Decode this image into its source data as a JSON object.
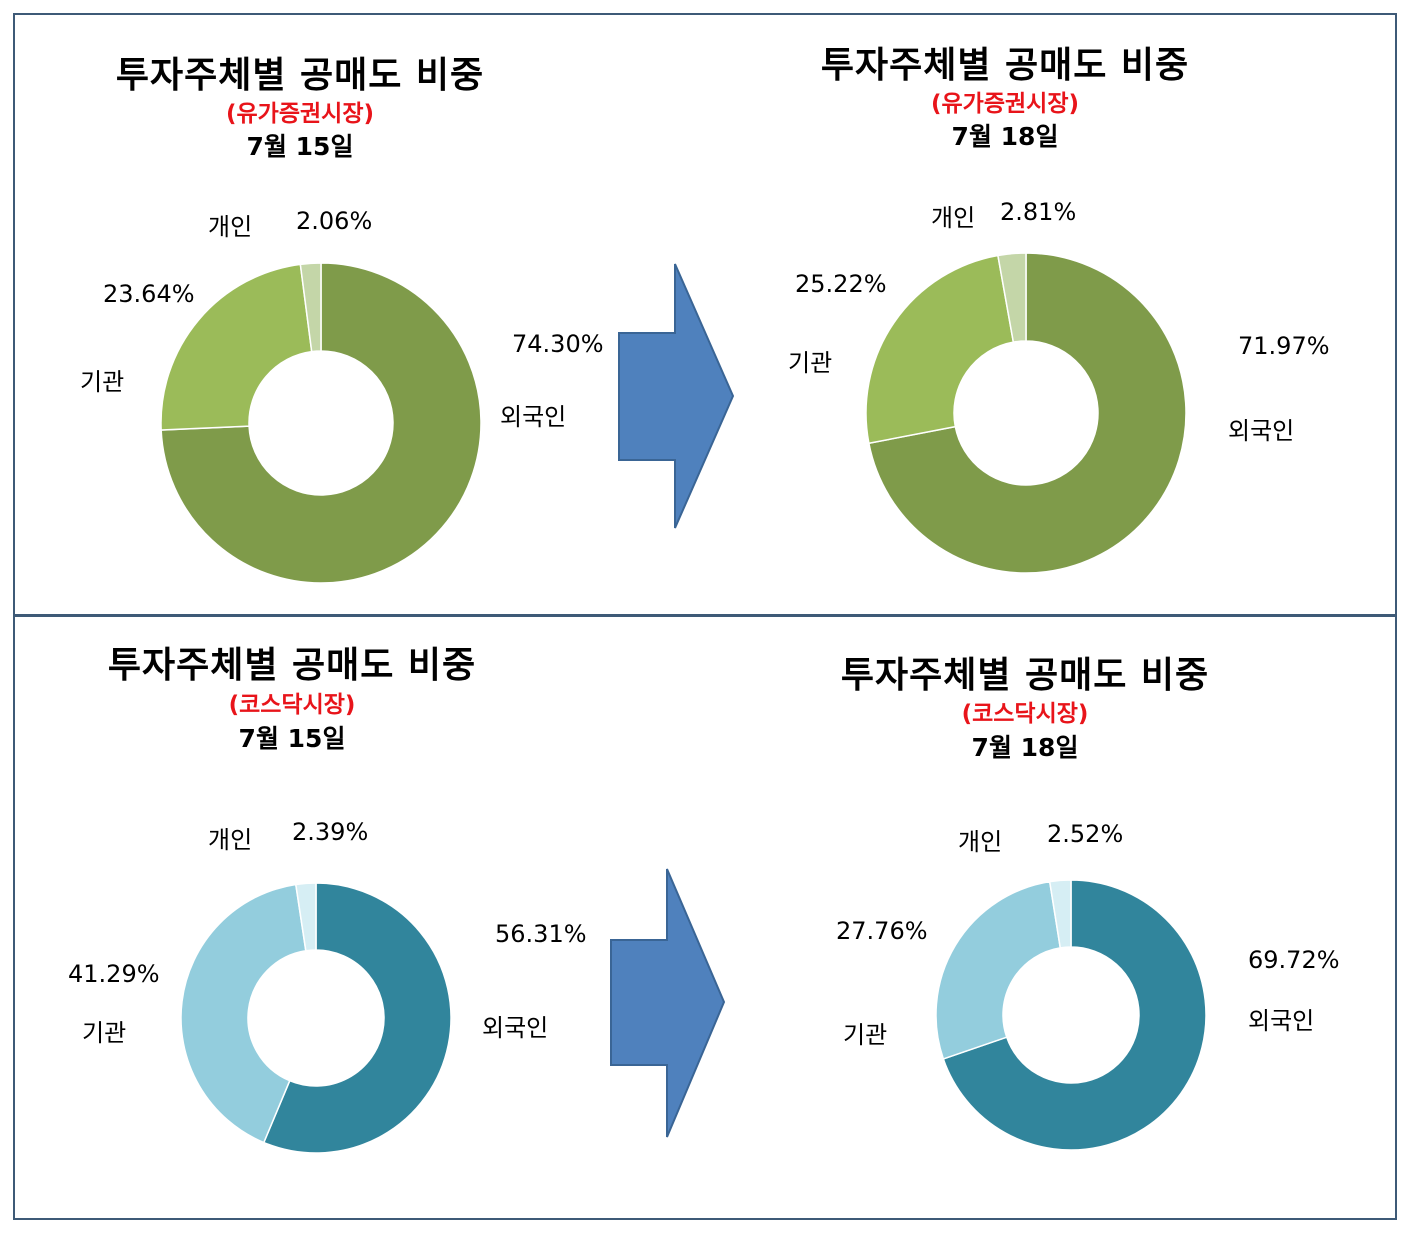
{
  "arrow_color": "#4f81bd",
  "panels": [
    {
      "left": {
        "title": "투자주체별 공매도 비중",
        "market": "(유가증권시장)",
        "date": "7월 15일",
        "labels": {
          "individual_name": "개인",
          "individual_value": "2.06%",
          "institution_value": "23.64%",
          "institution_name": "기관",
          "foreign_value": "74.30%",
          "foreign_name": "외국인"
        }
      },
      "right": {
        "title": "투자주체별 공매도 비중",
        "market": "(유가증권시장)",
        "date": "7월 18일",
        "labels": {
          "individual_name": "개인",
          "individual_value": "2.81%",
          "institution_value": "25.22%",
          "institution_name": "기관",
          "foreign_value": "71.97%",
          "foreign_name": "외국인"
        }
      }
    },
    {
      "left": {
        "title": "투자주체별 공매도 비중",
        "market": "(코스닥시장)",
        "date": "7월 15일",
        "labels": {
          "individual_name": "개인",
          "individual_value": "2.39%",
          "institution_value": "41.29%",
          "institution_name": "기관",
          "foreign_value": "56.31%",
          "foreign_name": "외국인"
        }
      },
      "right": {
        "title": "투자주체별 공매도 비중",
        "market": "(코스닥시장)",
        "date": "7월 18일",
        "labels": {
          "individual_name": "개인",
          "individual_value": "2.52%",
          "institution_value": "27.76%",
          "institution_name": "기관",
          "foreign_value": "69.72%",
          "foreign_name": "외국인"
        }
      }
    }
  ],
  "chart_data": [
    {
      "type": "pie",
      "title": "투자주체별 공매도 비중",
      "subtitle": "(유가증권시장) 7월 15일",
      "categories": [
        "외국인",
        "기관",
        "개인"
      ],
      "values": [
        74.3,
        23.64,
        2.06
      ],
      "colors": [
        "#7f9b4a",
        "#9bbb59",
        "#c4d6a8"
      ]
    },
    {
      "type": "pie",
      "title": "투자주체별 공매도 비중",
      "subtitle": "(유가증권시장) 7월 18일",
      "categories": [
        "외국인",
        "기관",
        "개인"
      ],
      "values": [
        71.97,
        25.22,
        2.81
      ],
      "colors": [
        "#7f9b4a",
        "#9bbb59",
        "#c4d6a8"
      ]
    },
    {
      "type": "pie",
      "title": "투자주체별 공매도 비중",
      "subtitle": "(코스닥시장) 7월 15일",
      "categories": [
        "외국인",
        "기관",
        "개인"
      ],
      "values": [
        56.31,
        41.29,
        2.39
      ],
      "colors": [
        "#31859c",
        "#93cddd",
        "#d6eef4"
      ]
    },
    {
      "type": "pie",
      "title": "투자주체별 공매도 비중",
      "subtitle": "(코스닥시장) 7월 18일",
      "categories": [
        "외국인",
        "기관",
        "개인"
      ],
      "values": [
        69.72,
        27.76,
        2.52
      ],
      "colors": [
        "#31859c",
        "#93cddd",
        "#d6eef4"
      ]
    }
  ]
}
